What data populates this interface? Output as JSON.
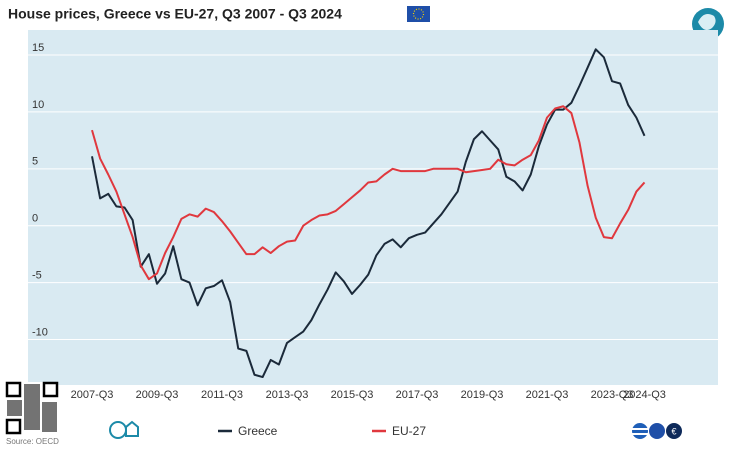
{
  "chart_data": {
    "type": "line",
    "title": "House prices, Greece vs EU-27, Q3 2007 - Q3 2024",
    "source": "Source: OECD",
    "categories": [
      "2007-Q3",
      null,
      null,
      null,
      null,
      null,
      null,
      null,
      "2009-Q3",
      null,
      null,
      null,
      null,
      null,
      null,
      null,
      "2011-Q3",
      null,
      null,
      null,
      null,
      null,
      null,
      null,
      "2013-Q3",
      null,
      null,
      null,
      null,
      null,
      null,
      null,
      "2015-Q3",
      null,
      null,
      null,
      null,
      null,
      null,
      null,
      "2017-Q3",
      null,
      null,
      null,
      null,
      null,
      null,
      null,
      "2019-Q3",
      null,
      null,
      null,
      null,
      null,
      null,
      null,
      "2021-Q3",
      null,
      null,
      null,
      null,
      null,
      null,
      null,
      "2023-Q3",
      null,
      null,
      null,
      "2024-Q3"
    ],
    "series": [
      {
        "name": "Greece",
        "color": "#1b2a3a",
        "values": [
          6.1,
          2.4,
          2.8,
          1.7,
          1.6,
          0.5,
          -3.6,
          -2.5,
          -5.1,
          -4.2,
          -1.8,
          -4.7,
          -5.0,
          -7.0,
          -5.5,
          -5.3,
          -4.8,
          -6.7,
          -10.8,
          -11.0,
          -13.1,
          -13.3,
          -11.8,
          -12.2,
          -10.3,
          -9.8,
          -9.3,
          -8.3,
          -6.9,
          -5.6,
          -4.1,
          -4.9,
          -6.0,
          -5.2,
          -4.3,
          -2.6,
          -1.6,
          -1.2,
          -1.9,
          -1.1,
          -0.8,
          -0.6,
          0.2,
          1.0,
          2.0,
          3.0,
          5.6,
          7.6,
          8.3,
          7.5,
          6.7,
          4.3,
          3.9,
          3.1,
          4.5,
          7.0,
          8.9,
          10.2,
          10.2,
          10.8,
          12.3,
          13.9,
          15.5,
          14.8,
          12.7,
          12.5,
          10.6,
          9.5,
          7.9
        ]
      },
      {
        "name": "EU-27",
        "color": "#e0383e",
        "values": [
          8.4,
          5.9,
          4.5,
          3.0,
          1.0,
          -1.0,
          -3.5,
          -4.7,
          -4.2,
          -2.4,
          -1.0,
          0.6,
          1.0,
          0.8,
          1.5,
          1.2,
          0.4,
          -0.5,
          -1.5,
          -2.5,
          -2.5,
          -1.9,
          -2.4,
          -1.8,
          -1.4,
          -1.3,
          0.0,
          0.5,
          0.9,
          1.0,
          1.3,
          1.9,
          2.5,
          3.1,
          3.8,
          3.9,
          4.5,
          5.0,
          4.8,
          4.8,
          4.8,
          4.8,
          5.0,
          5.0,
          5.0,
          5.0,
          4.7,
          4.8,
          4.9,
          5.0,
          5.8,
          5.4,
          5.3,
          5.8,
          6.2,
          7.5,
          9.5,
          10.3,
          10.5,
          9.9,
          7.3,
          3.5,
          0.7,
          -1.0,
          -1.1,
          0.2,
          1.4,
          3.0,
          3.8
        ]
      }
    ],
    "ylim": [
      -14,
      17.2
    ],
    "yticks": [
      -10,
      -5,
      0,
      5,
      10,
      15
    ],
    "grid": true
  }
}
